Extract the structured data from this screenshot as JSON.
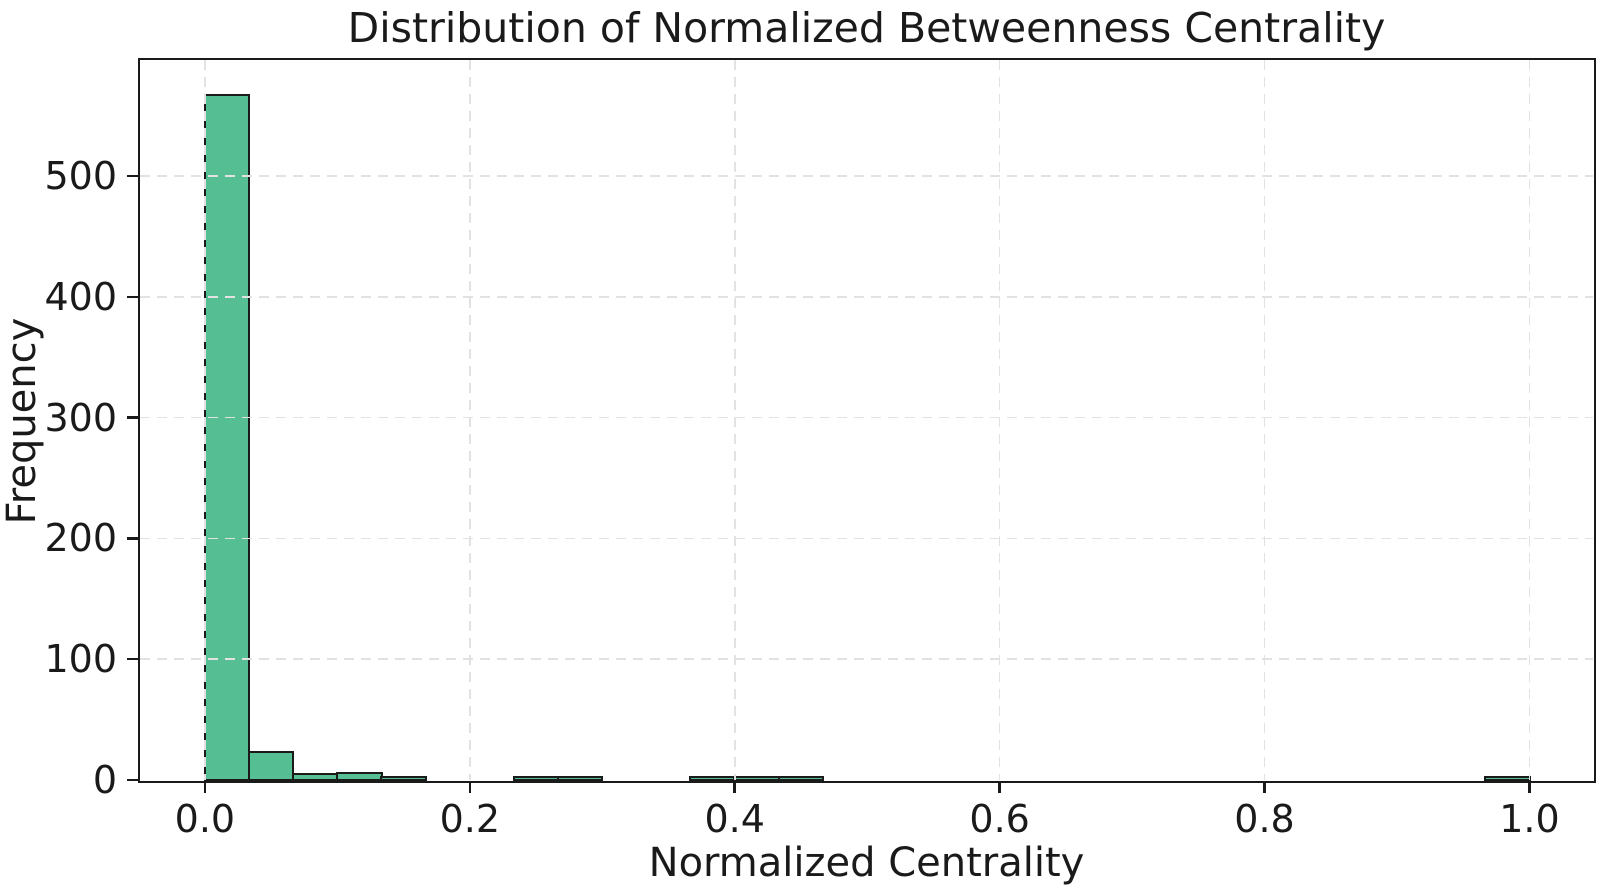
{
  "figure": {
    "title": "Distribution of Normalized Betweenness Centrality",
    "xlabel": "Normalized Centrality",
    "ylabel": "Frequency"
  },
  "colors": {
    "bar_fill": "#55bf93",
    "bar_edge": "#1a1a1a",
    "axis": "#1a1a1a",
    "grid": "#e2e2e2",
    "text": "#1a1a1a",
    "background": "#ffffff"
  },
  "chart_data": {
    "type": "bar",
    "subtype": "histogram",
    "title": "Distribution of Normalized Betweenness Centrality",
    "xlabel": "Normalized Centrality",
    "ylabel": "Frequency",
    "bin_range": [
      0.0,
      1.0
    ],
    "bin_count": 30,
    "bin_width": 0.0333,
    "frequencies": [
      567,
      23,
      5,
      6,
      2,
      0,
      0,
      2,
      2,
      0,
      0,
      2,
      2,
      2,
      0,
      0,
      0,
      0,
      0,
      0,
      0,
      0,
      0,
      0,
      0,
      0,
      0,
      0,
      0,
      2
    ],
    "xlim": [
      -0.049,
      1.048
    ],
    "ylim": [
      0,
      596
    ],
    "x_ticks": [
      {
        "value": 0.0,
        "label": "0.0"
      },
      {
        "value": 0.2,
        "label": "0.2"
      },
      {
        "value": 0.4,
        "label": "0.4"
      },
      {
        "value": 0.6,
        "label": "0.6"
      },
      {
        "value": 0.8,
        "label": "0.8"
      },
      {
        "value": 1.0,
        "label": "1.0"
      }
    ],
    "y_ticks": [
      {
        "value": 0,
        "label": "0"
      },
      {
        "value": 100,
        "label": "100"
      },
      {
        "value": 200,
        "label": "200"
      },
      {
        "value": 300,
        "label": "300"
      },
      {
        "value": 400,
        "label": "400"
      },
      {
        "value": 500,
        "label": "500"
      }
    ],
    "grid": {
      "visible": true,
      "style": "dashed",
      "axes": "both",
      "above_bars": true
    },
    "legend": null
  }
}
